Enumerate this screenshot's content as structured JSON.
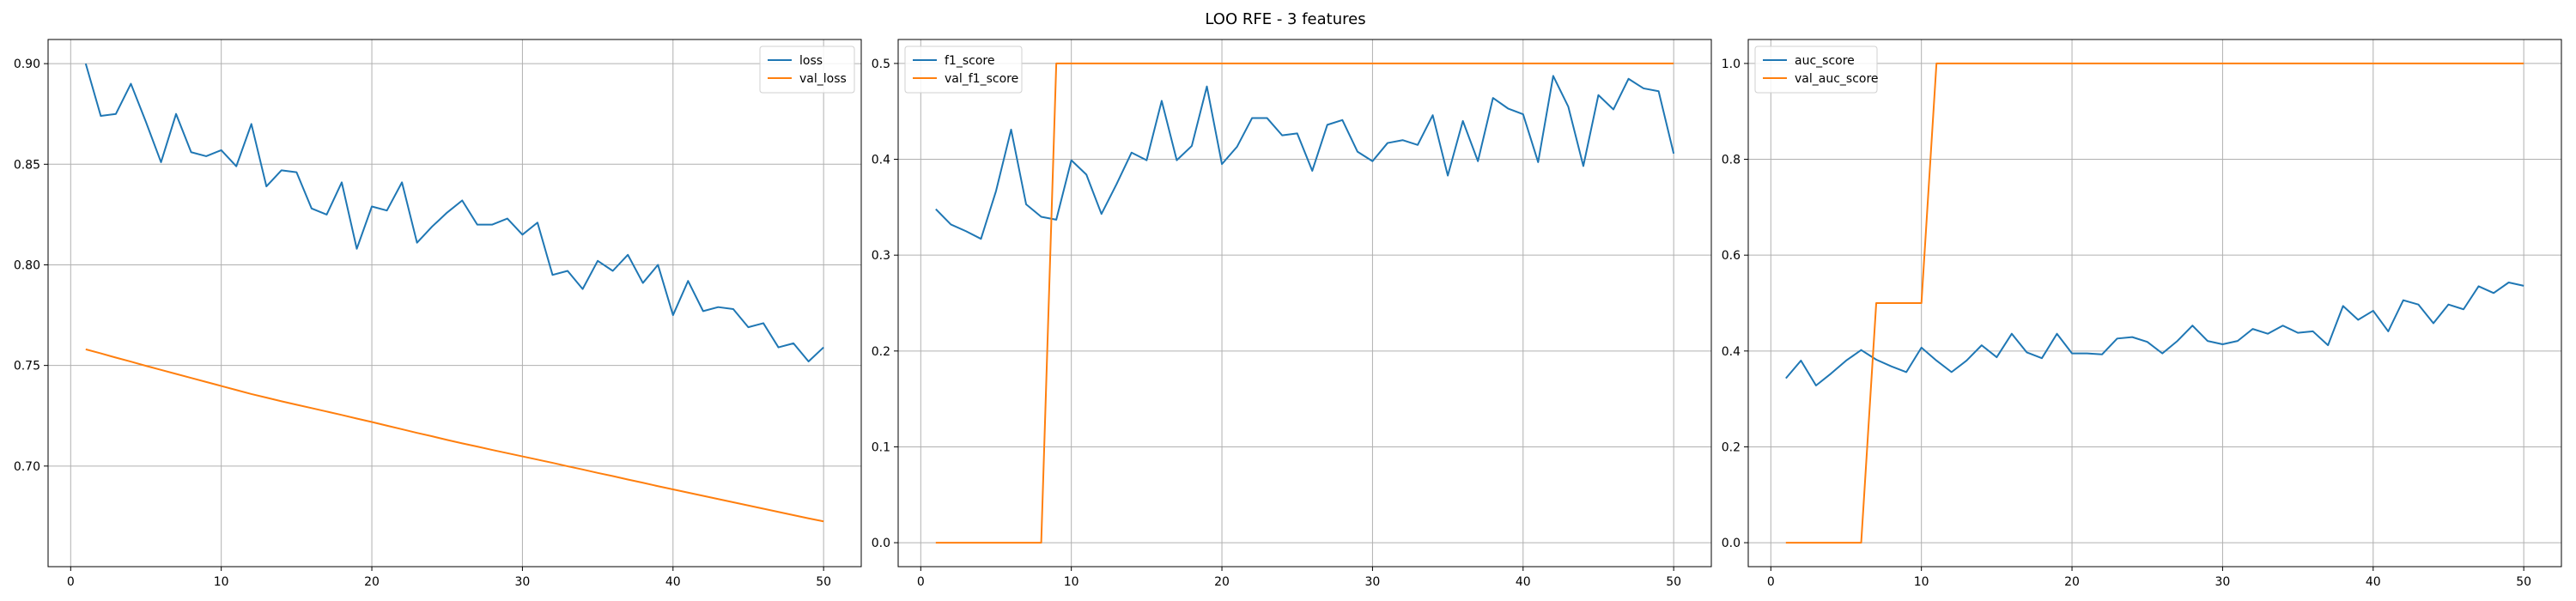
{
  "figure": {
    "title": "LOO RFE - 3 features"
  },
  "chart_data": [
    {
      "type": "line",
      "title": "",
      "xlabel": "",
      "ylabel": "",
      "xlim": [
        -1.5,
        52.5
      ],
      "ylim": [
        0.65,
        0.912
      ],
      "x_ticks": [
        0,
        10,
        20,
        30,
        40,
        50
      ],
      "y_ticks": [
        0.7,
        0.75,
        0.8,
        0.85,
        0.9
      ],
      "y_tick_decimals": 2,
      "grid": true,
      "legend_position": "top-right",
      "series": [
        {
          "name": "loss",
          "color": "#1f77b4",
          "x": [
            1,
            2,
            3,
            4,
            5,
            6,
            7,
            8,
            9,
            10,
            11,
            12,
            13,
            14,
            15,
            16,
            17,
            18,
            19,
            20,
            21,
            22,
            23,
            24,
            25,
            26,
            27,
            28,
            29,
            30,
            31,
            32,
            33,
            34,
            35,
            36,
            37,
            38,
            39,
            40,
            41,
            42,
            43,
            44,
            45,
            46,
            47,
            48,
            49,
            50
          ],
          "values": [
            0.9,
            0.874,
            0.875,
            0.89,
            0.871,
            0.851,
            0.875,
            0.856,
            0.854,
            0.857,
            0.849,
            0.87,
            0.839,
            0.847,
            0.846,
            0.828,
            0.825,
            0.841,
            0.808,
            0.829,
            0.827,
            0.841,
            0.811,
            0.819,
            0.826,
            0.832,
            0.82,
            0.82,
            0.823,
            0.815,
            0.821,
            0.795,
            0.797,
            0.788,
            0.802,
            0.797,
            0.805,
            0.791,
            0.8,
            0.775,
            0.792,
            0.777,
            0.779,
            0.778,
            0.769,
            0.771,
            0.759,
            0.761,
            0.752,
            0.759
          ]
        },
        {
          "name": "val_loss",
          "color": "#ff7f0e",
          "x": [
            1,
            2,
            3,
            4,
            5,
            6,
            7,
            8,
            9,
            10,
            11,
            12,
            13,
            14,
            15,
            16,
            17,
            18,
            19,
            20,
            21,
            22,
            23,
            24,
            25,
            26,
            27,
            28,
            29,
            30,
            31,
            32,
            33,
            34,
            35,
            36,
            37,
            38,
            39,
            40,
            41,
            42,
            43,
            44,
            45,
            46,
            47,
            48,
            49,
            50
          ],
          "values": [
            0.758,
            0.756,
            0.7539,
            0.7519,
            0.7498,
            0.7478,
            0.7458,
            0.7438,
            0.7418,
            0.7398,
            0.7378,
            0.7358,
            0.734,
            0.7322,
            0.7305,
            0.7288,
            0.7271,
            0.7254,
            0.7236,
            0.7219,
            0.7201,
            0.7183,
            0.7165,
            0.7148,
            0.713,
            0.7113,
            0.7097,
            0.708,
            0.7064,
            0.7048,
            0.7032,
            0.7016,
            0.6999,
            0.6983,
            0.6966,
            0.695,
            0.6933,
            0.6917,
            0.69,
            0.6884,
            0.6868,
            0.6852,
            0.6836,
            0.682,
            0.6804,
            0.6788,
            0.6772,
            0.6756,
            0.674,
            0.6725
          ]
        }
      ]
    },
    {
      "type": "line",
      "title": "",
      "xlabel": "",
      "ylabel": "",
      "xlim": [
        -1.5,
        52.5
      ],
      "ylim": [
        -0.025,
        0.525
      ],
      "x_ticks": [
        0,
        10,
        20,
        30,
        40,
        50
      ],
      "y_ticks": [
        0.0,
        0.1,
        0.2,
        0.3,
        0.4,
        0.5
      ],
      "y_tick_decimals": 1,
      "grid": true,
      "legend_position": "top-left",
      "series": [
        {
          "name": "f1_score",
          "color": "#1f77b4",
          "x": [
            1,
            2,
            3,
            4,
            5,
            6,
            7,
            8,
            9,
            10,
            11,
            12,
            13,
            14,
            15,
            16,
            17,
            18,
            19,
            20,
            21,
            22,
            23,
            24,
            25,
            26,
            27,
            28,
            29,
            30,
            31,
            32,
            33,
            34,
            35,
            36,
            37,
            38,
            39,
            40,
            41,
            42,
            43,
            44,
            45,
            46,
            47,
            48,
            49,
            50
          ],
          "values": [
            0.348,
            0.332,
            0.325,
            0.317,
            0.367,
            0.431,
            0.353,
            0.34,
            0.337,
            0.399,
            0.384,
            0.343,
            0.374,
            0.407,
            0.399,
            0.461,
            0.399,
            0.414,
            0.476,
            0.395,
            0.413,
            0.443,
            0.443,
            0.425,
            0.427,
            0.388,
            0.436,
            0.441,
            0.408,
            0.398,
            0.417,
            0.42,
            0.415,
            0.446,
            0.383,
            0.44,
            0.398,
            0.464,
            0.453,
            0.447,
            0.397,
            0.487,
            0.455,
            0.393,
            0.467,
            0.452,
            0.484,
            0.474,
            0.471,
            0.406
          ]
        },
        {
          "name": "val_f1_score",
          "color": "#ff7f0e",
          "x": [
            1,
            2,
            3,
            4,
            5,
            6,
            7,
            8,
            9,
            10,
            11,
            12,
            13,
            14,
            15,
            16,
            17,
            18,
            19,
            20,
            21,
            22,
            23,
            24,
            25,
            26,
            27,
            28,
            29,
            30,
            31,
            32,
            33,
            34,
            35,
            36,
            37,
            38,
            39,
            40,
            41,
            42,
            43,
            44,
            45,
            46,
            47,
            48,
            49,
            50
          ],
          "values": [
            0,
            0,
            0,
            0,
            0,
            0,
            0,
            0,
            0.5,
            0.5,
            0.5,
            0.5,
            0.5,
            0.5,
            0.5,
            0.5,
            0.5,
            0.5,
            0.5,
            0.5,
            0.5,
            0.5,
            0.5,
            0.5,
            0.5,
            0.5,
            0.5,
            0.5,
            0.5,
            0.5,
            0.5,
            0.5,
            0.5,
            0.5,
            0.5,
            0.5,
            0.5,
            0.5,
            0.5,
            0.5,
            0.5,
            0.5,
            0.5,
            0.5,
            0.5,
            0.5,
            0.5,
            0.5,
            0.5,
            0.5
          ]
        }
      ]
    },
    {
      "type": "line",
      "title": "",
      "xlabel": "",
      "ylabel": "",
      "xlim": [
        -1.5,
        52.5
      ],
      "ylim": [
        -0.05,
        1.05
      ],
      "x_ticks": [
        0,
        10,
        20,
        30,
        40,
        50
      ],
      "y_ticks": [
        0.0,
        0.2,
        0.4,
        0.6,
        0.8,
        1.0
      ],
      "y_tick_decimals": 1,
      "grid": true,
      "legend_position": "top-left",
      "series": [
        {
          "name": "auc_score",
          "color": "#1f77b4",
          "x": [
            1,
            2,
            3,
            4,
            5,
            6,
            7,
            8,
            9,
            10,
            11,
            12,
            13,
            14,
            15,
            16,
            17,
            18,
            19,
            20,
            21,
            22,
            23,
            24,
            25,
            26,
            27,
            28,
            29,
            30,
            31,
            32,
            33,
            34,
            35,
            36,
            37,
            38,
            39,
            40,
            41,
            42,
            43,
            44,
            45,
            46,
            47,
            48,
            49,
            50
          ],
          "values": [
            0.343,
            0.38,
            0.328,
            0.353,
            0.38,
            0.402,
            0.382,
            0.368,
            0.356,
            0.407,
            0.38,
            0.356,
            0.38,
            0.412,
            0.387,
            0.436,
            0.397,
            0.385,
            0.436,
            0.395,
            0.395,
            0.393,
            0.426,
            0.429,
            0.419,
            0.395,
            0.421,
            0.453,
            0.421,
            0.414,
            0.421,
            0.446,
            0.436,
            0.453,
            0.438,
            0.441,
            0.412,
            0.494,
            0.465,
            0.484,
            0.441,
            0.506,
            0.497,
            0.458,
            0.497,
            0.487,
            0.535,
            0.521,
            0.543,
            0.536
          ]
        },
        {
          "name": "val_auc_score",
          "color": "#ff7f0e",
          "x": [
            1,
            2,
            3,
            4,
            5,
            6,
            7,
            8,
            9,
            10,
            11,
            12,
            13,
            14,
            15,
            16,
            17,
            18,
            19,
            20,
            21,
            22,
            23,
            24,
            25,
            26,
            27,
            28,
            29,
            30,
            31,
            32,
            33,
            34,
            35,
            36,
            37,
            38,
            39,
            40,
            41,
            42,
            43,
            44,
            45,
            46,
            47,
            48,
            49,
            50
          ],
          "values": [
            0,
            0,
            0,
            0,
            0,
            0,
            0.5,
            0.5,
            0.5,
            0.5,
            1,
            1,
            1,
            1,
            1,
            1,
            1,
            1,
            1,
            1,
            1,
            1,
            1,
            1,
            1,
            1,
            1,
            1,
            1,
            1,
            1,
            1,
            1,
            1,
            1,
            1,
            1,
            1,
            1,
            1,
            1,
            1,
            1,
            1,
            1,
            1,
            1,
            1,
            1,
            1
          ]
        }
      ]
    }
  ]
}
